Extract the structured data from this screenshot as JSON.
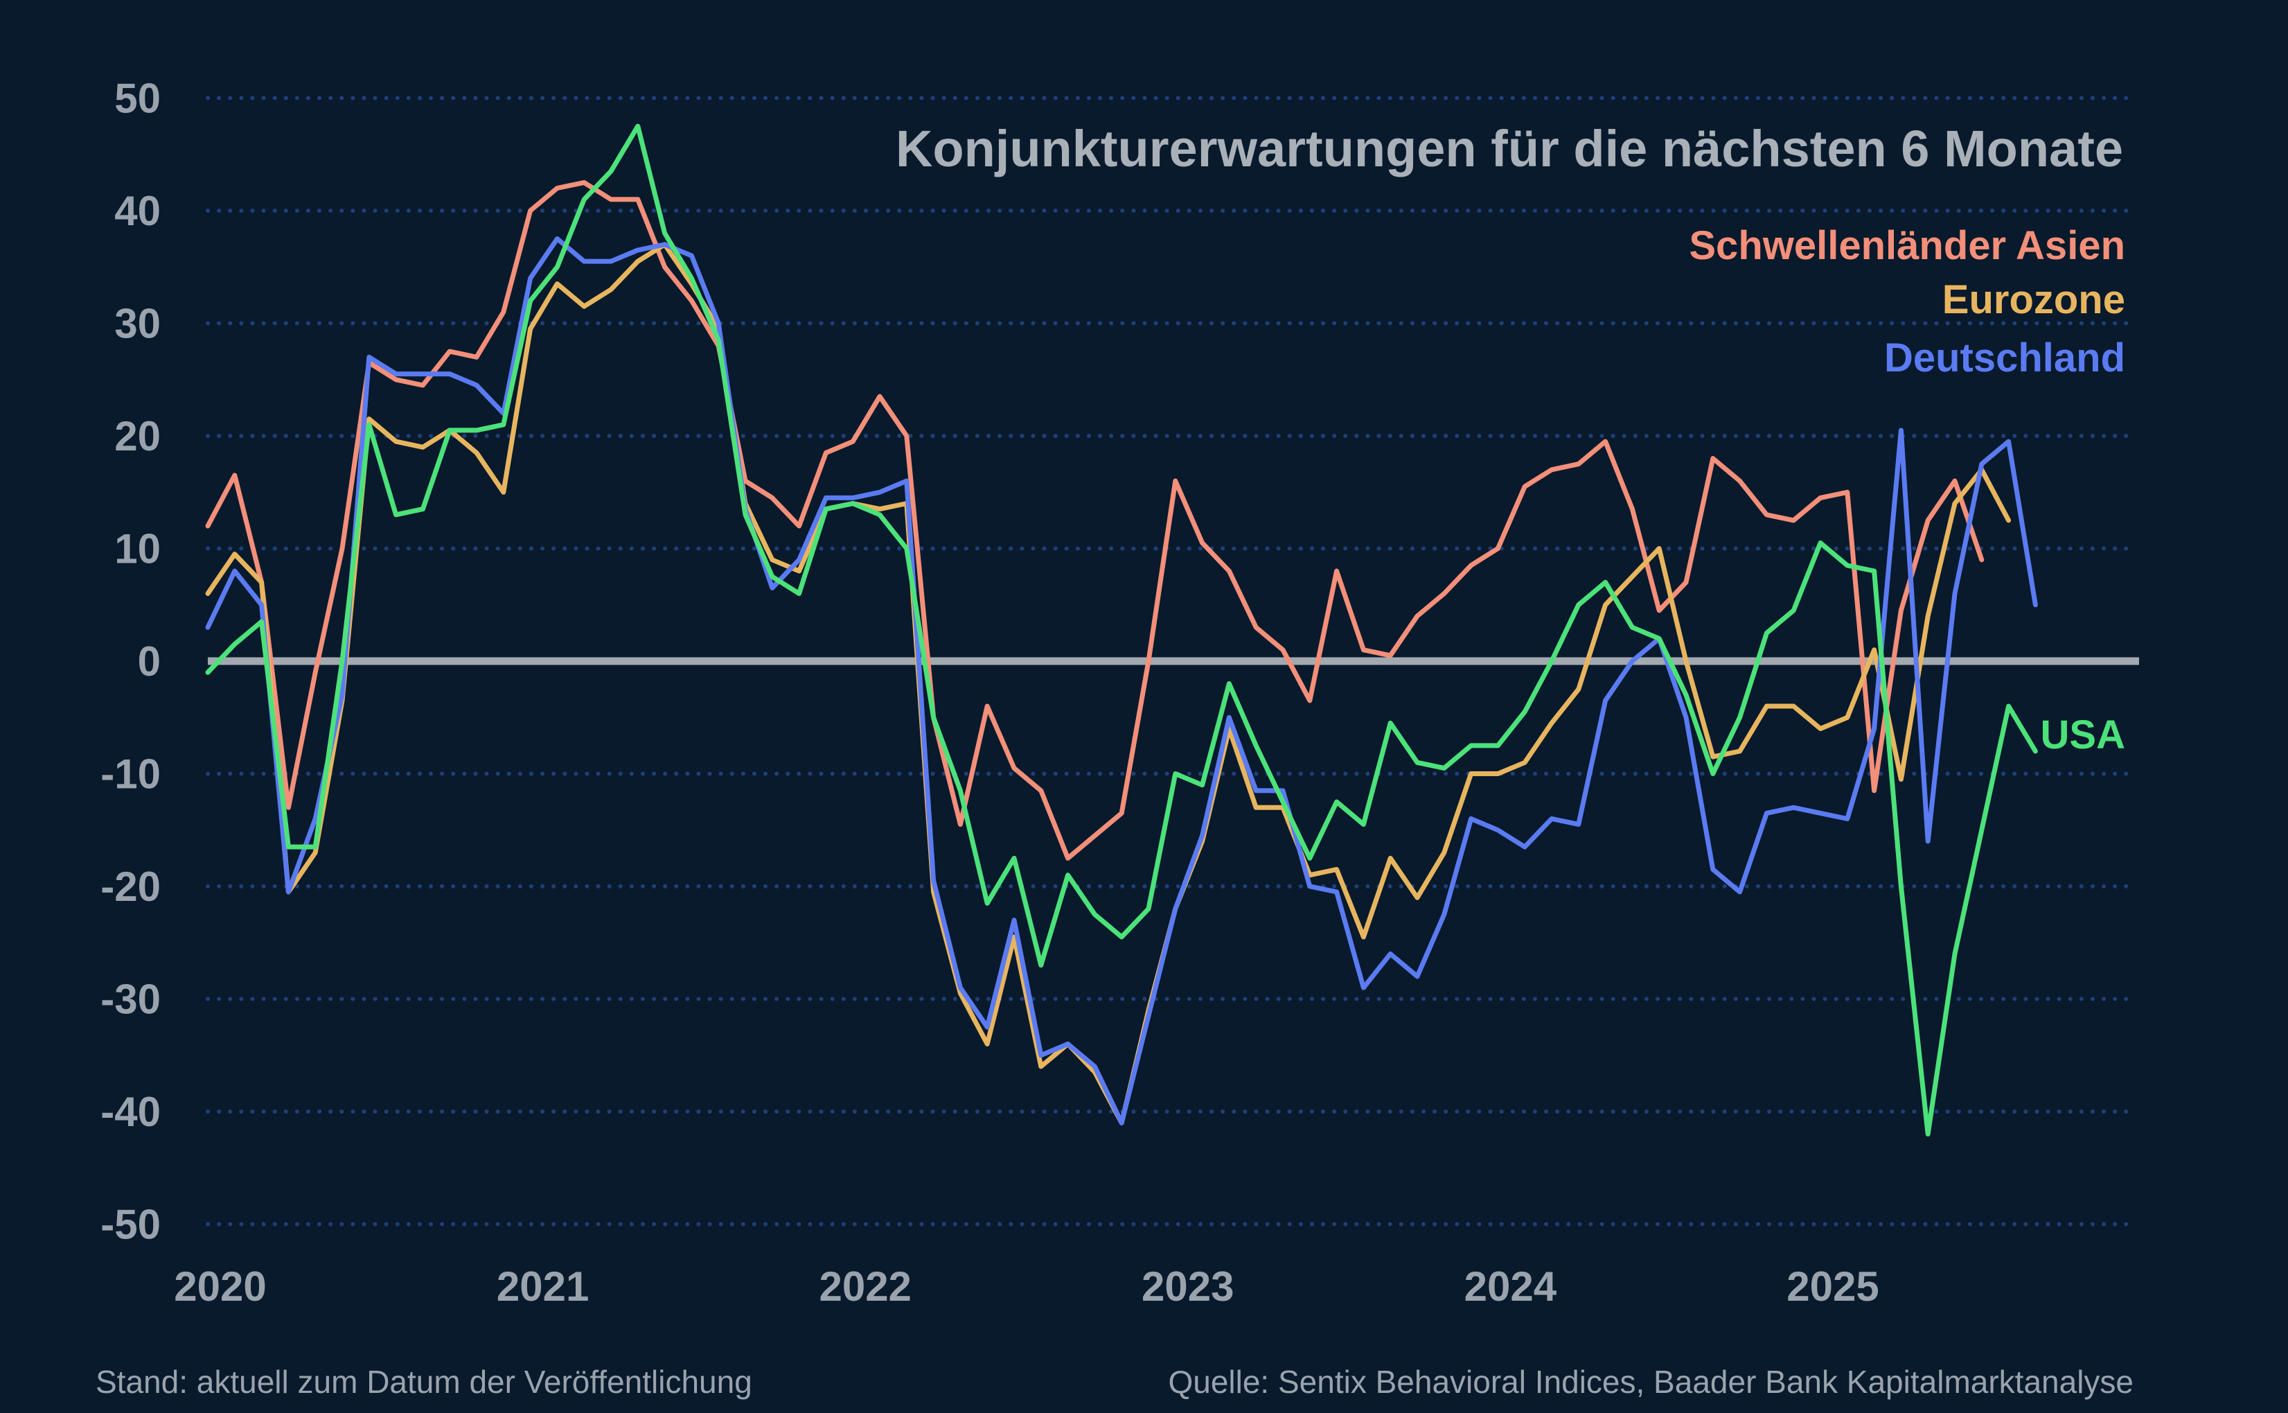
{
  "chart_data": {
    "type": "line",
    "title": "Konjunkturerwartungen für die nächsten 6 Monate",
    "x_tick_labels": [
      "2020",
      "2021",
      "2022",
      "2023",
      "2024",
      "2025"
    ],
    "y_tick_labels": [
      "50",
      "40",
      "30",
      "20",
      "10",
      "0",
      "-10",
      "-20",
      "-30",
      "-40",
      "-50"
    ],
    "ylim": [
      -50,
      50
    ],
    "x_start": "2020-01",
    "grid": "horizontal dotted",
    "zero_line": true,
    "legend_placement": "top-right",
    "series": [
      {
        "name": "Schwellenländer Asien",
        "color": "#f48f7a",
        "values": [
          12,
          16.5,
          7,
          -13,
          -1,
          10,
          26.5,
          25,
          24.5,
          27.5,
          27,
          31,
          40,
          42,
          42.5,
          41,
          41,
          35,
          32,
          28,
          16,
          14.5,
          12,
          18.5,
          19.5,
          23.5,
          20,
          -5,
          -14.5,
          -4,
          -9.5,
          -11.5,
          -17.5,
          -15.5,
          -13.5,
          0,
          16,
          10.5,
          8,
          3,
          1,
          -3.5,
          8,
          1,
          0.5,
          4,
          6,
          8.5,
          10,
          15.5,
          17,
          17.5,
          19.5,
          13.5,
          4.5,
          7,
          18,
          16,
          13,
          12.5,
          14.5,
          15,
          -11.5,
          4.5,
          12.5,
          16,
          9
        ]
      },
      {
        "name": "Eurozone",
        "color": "#e8b55f",
        "values": [
          6,
          9.5,
          7,
          -20.5,
          -17,
          -3.5,
          21.5,
          19.5,
          19,
          20.5,
          18.5,
          15,
          29.5,
          33.5,
          31.5,
          33,
          35.5,
          37,
          33.5,
          29.5,
          14,
          9,
          8,
          13.5,
          14,
          13.5,
          14,
          -20.5,
          -29.5,
          -34,
          -24.5,
          -36,
          -34,
          -36.5,
          -41,
          -31,
          -22,
          -16,
          -6,
          -13,
          -13,
          -19,
          -18.5,
          -24.5,
          -17.5,
          -21,
          -17,
          -10,
          -10,
          -9,
          -5.5,
          -2.5,
          5,
          7.5,
          10,
          0,
          -8.5,
          -8,
          -4,
          -4,
          -6,
          -5,
          1,
          -10.5,
          4,
          14,
          17,
          12.5
        ]
      },
      {
        "name": "Deutschland",
        "color": "#5b7bf2",
        "values": [
          3,
          8,
          5,
          -20.5,
          -14,
          -3,
          27,
          25.5,
          25.5,
          25.5,
          24.5,
          22,
          34,
          37.5,
          35.5,
          35.5,
          36.5,
          37,
          36,
          30,
          13.5,
          6.5,
          9,
          14.5,
          14.5,
          15,
          16,
          -19.5,
          -29,
          -32.5,
          -23,
          -35,
          -34,
          -36,
          -41,
          -31.5,
          -22,
          -15.5,
          -5,
          -11.5,
          -11.5,
          -20,
          -20.5,
          -29,
          -26,
          -28,
          -22.5,
          -14,
          -15,
          -16.5,
          -14,
          -14.5,
          -3.5,
          0,
          2,
          -5,
          -18.5,
          -20.5,
          -13.5,
          -13,
          -13.5,
          -14,
          -6,
          20.5,
          -16,
          6,
          17.5,
          19.5,
          5
        ]
      },
      {
        "name": "USA",
        "color": "#4ce27a",
        "values": [
          -1,
          1.5,
          3.5,
          -16.5,
          -16.5,
          0,
          21,
          13,
          13.5,
          20.5,
          20.5,
          21,
          32,
          35,
          41,
          43.5,
          47.5,
          38,
          34,
          28.5,
          13,
          7.5,
          6,
          13.5,
          14,
          13,
          10,
          -5,
          -11.5,
          -21.5,
          -17.5,
          -27,
          -19,
          -22.5,
          -24.5,
          -22,
          -10,
          -11,
          -2,
          -7.5,
          -12.5,
          -17.5,
          -12.5,
          -14.5,
          -5.5,
          -9,
          -9.5,
          -7.5,
          -7.5,
          -4.5,
          0,
          5,
          7,
          3,
          2,
          -3,
          -10,
          -5,
          2.5,
          4.5,
          10.5,
          8.5,
          8,
          -20,
          -42,
          -26,
          -15,
          -4,
          -8
        ]
      }
    ],
    "series_labels_on_chart": [
      "Schwellenländer Asien",
      "Eurozone",
      "Deutschland",
      "USA"
    ]
  },
  "footer": {
    "left": "Stand: aktuell zum Datum der Veröffentlichung",
    "right": "Quelle: Sentix Behavioral Indices, Baader Bank Kapitalmarktanalyse"
  },
  "colors": {
    "background": "#081a2c",
    "zero_line": "#a3a9b0",
    "grid": "#1f3f78",
    "axis_text": "#9aa3ad"
  }
}
